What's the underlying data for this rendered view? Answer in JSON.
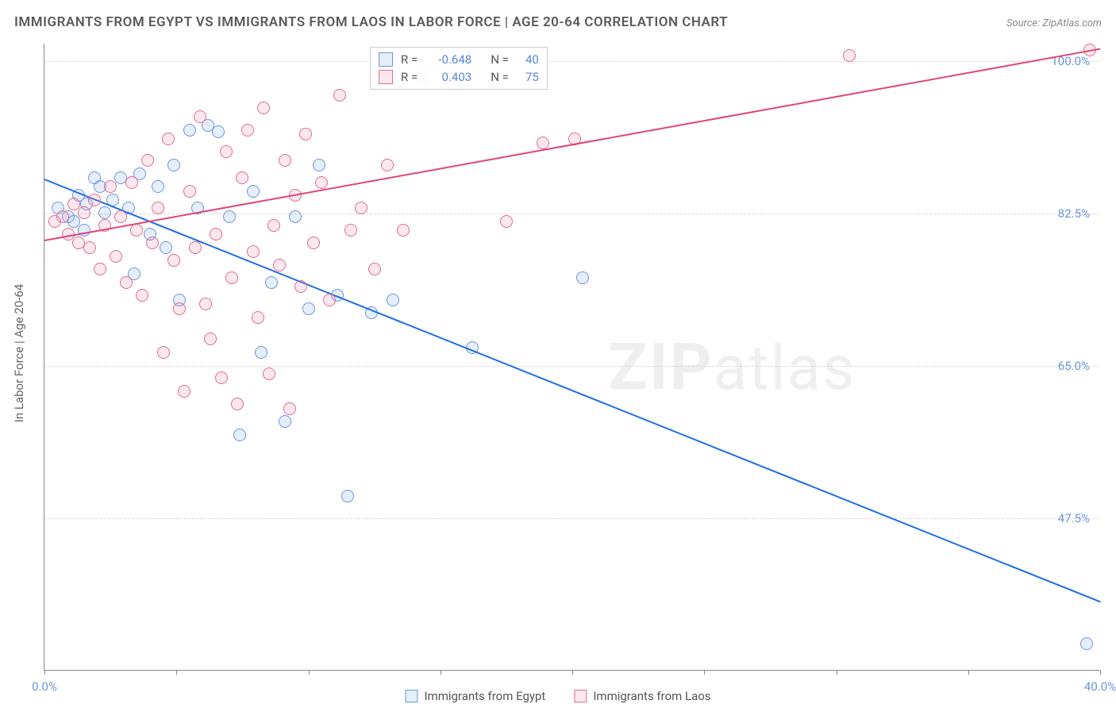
{
  "title": "IMMIGRANTS FROM EGYPT VS IMMIGRANTS FROM LAOS IN LABOR FORCE | AGE 20-64 CORRELATION CHART",
  "source": "Source: ZipAtlas.com",
  "watermark_bold": "ZIP",
  "watermark_rest": "atlas",
  "chart": {
    "type": "scatter",
    "y_axis_title": "In Labor Force | Age 20-64",
    "background_color": "#ffffff",
    "grid_color": "#d8d8d8",
    "axis_color": "#888888",
    "xlim": [
      0,
      40
    ],
    "ylim": [
      30,
      102
    ],
    "x_ticks": [
      0,
      5,
      10,
      15,
      20,
      25,
      30,
      35,
      40
    ],
    "x_tick_labels": {
      "0": "0.0%",
      "40": "40.0%"
    },
    "y_ticks": [
      47.5,
      65.0,
      82.5,
      100.0
    ],
    "y_tick_labels": [
      "47.5%",
      "65.0%",
      "82.5%",
      "100.0%"
    ],
    "tick_label_color": "#6b95e0",
    "tick_label_fontsize": 15
  },
  "series": [
    {
      "name": "Immigrants from Egypt",
      "short": "egypt",
      "fill": "rgba(137,176,229,0.22)",
      "stroke": "#6b95e0",
      "R_label": "R =",
      "R_value": "-0.648",
      "N_label": "N =",
      "N_value": "40",
      "trend": {
        "x1": 0,
        "y1": 86.5,
        "x2": 40,
        "y2": 38.0,
        "color": "#1f6fe0",
        "width": 2
      },
      "points": [
        [
          0.5,
          83
        ],
        [
          0.9,
          82
        ],
        [
          1.1,
          81.5
        ],
        [
          1.3,
          84.5
        ],
        [
          1.5,
          80.5
        ],
        [
          1.6,
          83.5
        ],
        [
          1.9,
          86.5
        ],
        [
          2.1,
          85.5
        ],
        [
          2.3,
          82.5
        ],
        [
          2.6,
          84
        ],
        [
          2.9,
          86.5
        ],
        [
          3.2,
          83
        ],
        [
          3.4,
          75.5
        ],
        [
          3.6,
          87
        ],
        [
          4.0,
          80
        ],
        [
          4.3,
          85.5
        ],
        [
          4.6,
          78.5
        ],
        [
          4.9,
          88
        ],
        [
          5.1,
          72.5
        ],
        [
          5.5,
          92
        ],
        [
          5.8,
          83
        ],
        [
          6.2,
          92.5
        ],
        [
          6.6,
          91.8
        ],
        [
          7.0,
          82
        ],
        [
          7.4,
          57
        ],
        [
          7.9,
          85
        ],
        [
          8.2,
          66.5
        ],
        [
          8.6,
          74.5
        ],
        [
          9.1,
          58.5
        ],
        [
          9.5,
          82
        ],
        [
          10.0,
          71.5
        ],
        [
          10.4,
          88
        ],
        [
          11.1,
          73
        ],
        [
          11.5,
          50
        ],
        [
          12.4,
          71
        ],
        [
          13.2,
          72.5
        ],
        [
          16.2,
          67
        ],
        [
          20.4,
          75
        ],
        [
          39.5,
          33
        ]
      ]
    },
    {
      "name": "Immigrants from Laos",
      "short": "laos",
      "fill": "rgba(233,140,170,0.20)",
      "stroke": "#e06b94",
      "R_label": "R =",
      "R_value": "0.403",
      "N_label": "N =",
      "N_value": "75",
      "trend": {
        "x1": 0,
        "y1": 79.5,
        "x2": 40,
        "y2": 101.5,
        "color": "#e0447b",
        "width": 2
      },
      "points": [
        [
          0.4,
          81.5
        ],
        [
          0.7,
          82
        ],
        [
          0.9,
          80
        ],
        [
          1.1,
          83.5
        ],
        [
          1.3,
          79
        ],
        [
          1.5,
          82.5
        ],
        [
          1.7,
          78.5
        ],
        [
          1.9,
          84
        ],
        [
          2.1,
          76
        ],
        [
          2.3,
          81
        ],
        [
          2.5,
          85.5
        ],
        [
          2.7,
          77.5
        ],
        [
          2.9,
          82
        ],
        [
          3.1,
          74.5
        ],
        [
          3.3,
          86
        ],
        [
          3.5,
          80.5
        ],
        [
          3.7,
          73
        ],
        [
          3.9,
          88.5
        ],
        [
          4.1,
          79
        ],
        [
          4.3,
          83
        ],
        [
          4.5,
          66.5
        ],
        [
          4.7,
          91
        ],
        [
          4.9,
          77
        ],
        [
          5.1,
          71.5
        ],
        [
          5.3,
          62
        ],
        [
          5.5,
          85
        ],
        [
          5.7,
          78.5
        ],
        [
          5.9,
          93.5
        ],
        [
          6.1,
          72
        ],
        [
          6.3,
          68
        ],
        [
          6.5,
          80
        ],
        [
          6.7,
          63.5
        ],
        [
          6.9,
          89.5
        ],
        [
          7.1,
          75
        ],
        [
          7.3,
          60.5
        ],
        [
          7.5,
          86.5
        ],
        [
          7.7,
          92
        ],
        [
          7.9,
          78
        ],
        [
          8.1,
          70.5
        ],
        [
          8.3,
          94.5
        ],
        [
          8.5,
          64
        ],
        [
          8.7,
          81
        ],
        [
          8.9,
          76.5
        ],
        [
          9.1,
          88.5
        ],
        [
          9.3,
          60
        ],
        [
          9.5,
          84.5
        ],
        [
          9.7,
          74
        ],
        [
          9.9,
          91.5
        ],
        [
          10.2,
          79
        ],
        [
          10.5,
          86
        ],
        [
          10.8,
          72.5
        ],
        [
          11.2,
          96
        ],
        [
          11.6,
          80.5
        ],
        [
          12.0,
          83
        ],
        [
          12.5,
          76
        ],
        [
          13.0,
          88
        ],
        [
          13.6,
          80.5
        ],
        [
          14.3,
          98
        ],
        [
          17.5,
          81.5
        ],
        [
          18.9,
          90.5
        ],
        [
          20.1,
          91
        ],
        [
          30.5,
          100.5
        ],
        [
          39.6,
          101.2
        ]
      ]
    }
  ],
  "legend_top": {
    "stat_value_color": "#5b87d9"
  },
  "legend_bottom_items": [
    {
      "label": "Immigrants from Egypt",
      "swatch_ref": 0
    },
    {
      "label": "Immigrants from Laos",
      "swatch_ref": 1
    }
  ]
}
